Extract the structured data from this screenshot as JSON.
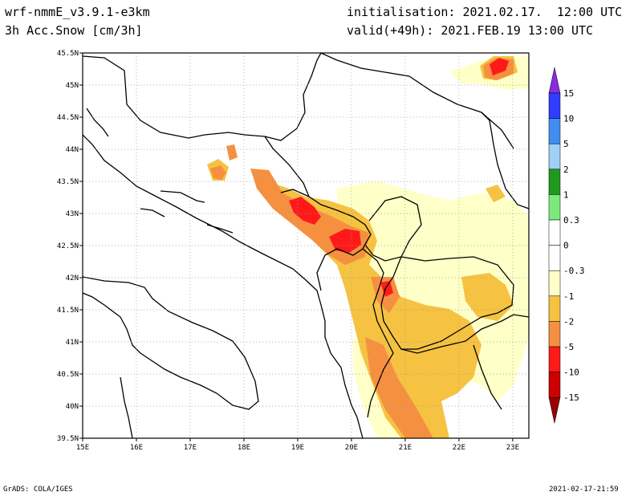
{
  "header": {
    "model": "wrf-nmmE_v3.9.1-e3km",
    "field": "3h Acc.Snow [cm/3h]",
    "init": "initialisation: 2021.02.17.  12:00 UTC",
    "valid": "valid(+49h): 2021.FEB.19 13:00 UTC"
  },
  "footer": {
    "left": "GrADS: COLA/IGES",
    "right": "2021-02-17-21:59"
  },
  "map": {
    "lon_ticks": [
      "15E",
      "16E",
      "17E",
      "18E",
      "19E",
      "20E",
      "21E",
      "22E",
      "23E"
    ],
    "lat_ticks": [
      "45.5N",
      "45N",
      "44.5N",
      "44N",
      "43.5N",
      "43N",
      "42.5N",
      "42N",
      "41.5N",
      "41N",
      "40.5N",
      "40N",
      "39.5N"
    ],
    "extent": {
      "lon_min": 15,
      "lon_max": 23.3,
      "lat_min": 39.5,
      "lat_max": 45.5
    }
  },
  "legend": {
    "labels": [
      "15",
      "10",
      "5",
      "2",
      "1",
      "0.3",
      "0",
      "-0.3",
      "-1",
      "-2",
      "-5",
      "-10",
      "-15"
    ],
    "colors": [
      "#8a2be2",
      "#2f3dff",
      "#3f8ef0",
      "#9fd0f8",
      "#1f9a1f",
      "#7bea7b",
      "#ffffff",
      "#ffffff",
      "#ffffc8",
      "#f5c242",
      "#f59041",
      "#ff1a1a",
      "#cc0000",
      "#990000"
    ]
  },
  "colors": {
    "snow_light": "#ffffc8",
    "snow_1": "#f5c242",
    "snow_2": "#f59041",
    "snow_5": "#ff1a1a",
    "snow_10": "#cc0000"
  }
}
